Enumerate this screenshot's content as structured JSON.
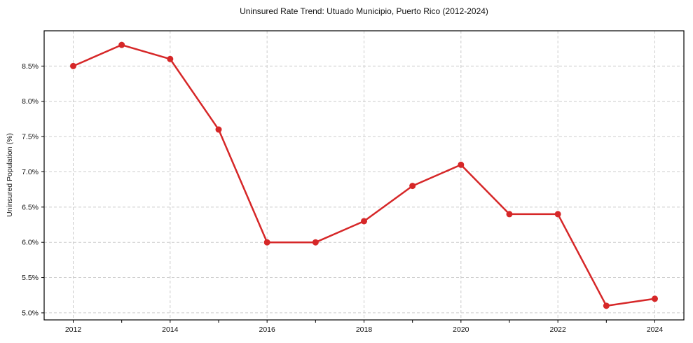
{
  "chart_data": {
    "type": "line",
    "title": "Uninsured Rate Trend: Utuado Municipio, Puerto Rico (2012-2024)",
    "xlabel": "",
    "ylabel": "Uninsured Population (%)",
    "x": [
      2012,
      2013,
      2014,
      2015,
      2016,
      2017,
      2018,
      2019,
      2020,
      2021,
      2022,
      2023,
      2024
    ],
    "series": [
      {
        "name": "Uninsured rate",
        "values": [
          8.5,
          8.8,
          8.6,
          7.6,
          6.0,
          6.0,
          6.3,
          6.8,
          7.1,
          6.4,
          6.4,
          5.1,
          5.2
        ]
      }
    ],
    "xlim": [
      2011.4,
      2024.6
    ],
    "ylim": [
      4.9,
      9.0
    ],
    "y_ticks": [
      5.0,
      5.5,
      6.0,
      6.5,
      7.0,
      7.5,
      8.0,
      8.5
    ],
    "y_tick_labels": [
      "5.0%",
      "5.5%",
      "6.0%",
      "6.5%",
      "7.0%",
      "7.5%",
      "8.0%",
      "8.5%"
    ],
    "x_labeled_ticks": [
      2012,
      2014,
      2016,
      2018,
      2020,
      2022,
      2024
    ],
    "grid": true,
    "legend": "none",
    "marker": "circle",
    "line_color": "#d62728",
    "grid_color": "#cccccc",
    "axis_color": "#000000",
    "text_color": "#111111"
  }
}
